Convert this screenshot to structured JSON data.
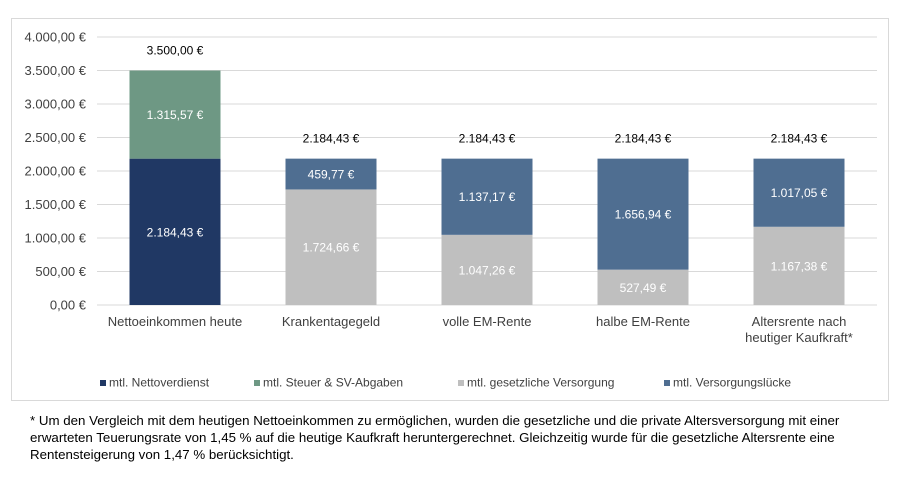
{
  "chart_data": {
    "type": "bar",
    "stacked": true,
    "categories": [
      "Nettoeinkommen heute",
      "Krankentagegeld",
      "volle EM-Rente",
      "halbe EM-Rente",
      "Altersrente nach heutiger Kaufkraft*"
    ],
    "series": [
      {
        "name": "mtl. Nettoverdienst",
        "color": "#203864",
        "values": [
          2184.43,
          0,
          0,
          0,
          0
        ],
        "labels": [
          "2.184,43 €",
          "",
          "",
          "",
          ""
        ]
      },
      {
        "name": "mtl. Steuer & SV-Abgaben",
        "color": "#6e9884",
        "values": [
          1315.57,
          0,
          0,
          0,
          0
        ],
        "labels": [
          "1.315,57 €",
          "",
          "",
          "",
          ""
        ]
      },
      {
        "name": "mtl. gesetzliche Versorgung",
        "color": "#bfbfbf",
        "values": [
          0,
          1724.66,
          1047.26,
          527.49,
          1167.38
        ],
        "labels": [
          "",
          "1.724,66 €",
          "1.047,26 €",
          "527,49 €",
          "1.167,38 €"
        ]
      },
      {
        "name": "mtl. Versorgungslücke",
        "color": "#4f6e91",
        "values": [
          0,
          459.77,
          1137.17,
          1656.94,
          1017.05
        ],
        "labels": [
          "",
          "459,77 €",
          "1.137,17 €",
          "1.656,94 €",
          "1.017,05 €"
        ]
      }
    ],
    "totals": [
      "3.500,00 €",
      "2.184,43 €",
      "2.184,43 €",
      "2.184,43 €",
      "2.184,43 €"
    ],
    "ylim": [
      0,
      4000
    ],
    "yticks": [
      "0,00 €",
      "500,00 €",
      "1.000,00 €",
      "1.500,00 €",
      "2.000,00 €",
      "2.500,00 €",
      "3.000,00 €",
      "3.500,00 €",
      "4.000,00 €"
    ],
    "grid": true,
    "legend_position": "bottom"
  },
  "footnote": "* Um den Vergleich mit dem heutigen Nettoeinkommen zu ermöglichen, wurden die gesetzliche und die private Altersversorgung mit einer erwarteten Teuerungsrate von 1,45 % auf die heutige Kaufkraft heruntergerechnet. Gleichzeitig wurde für die gesetzliche Altersrente eine Rentensteigerung von 1,47 % berücksichtigt."
}
